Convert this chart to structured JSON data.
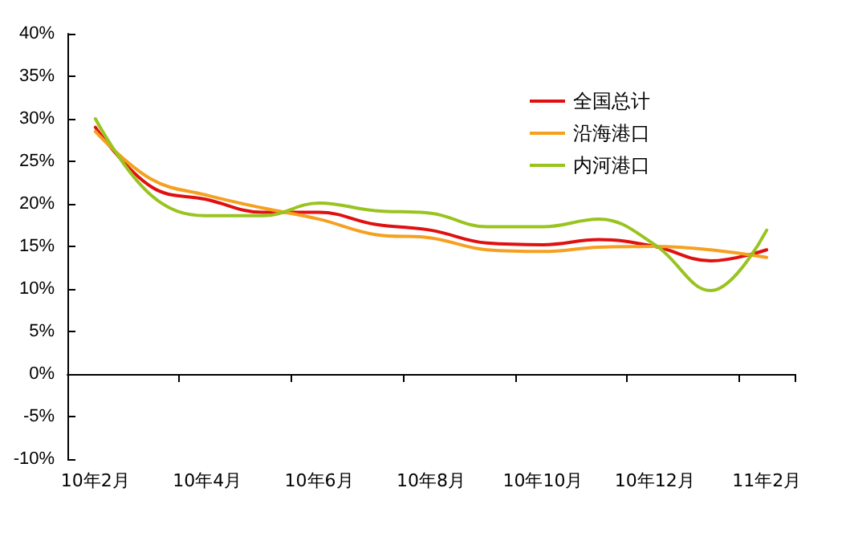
{
  "chart_data": {
    "type": "line",
    "categories": [
      "10年2月",
      null,
      "10年4月",
      null,
      "10年6月",
      null,
      "10年8月",
      null,
      "10年10月",
      null,
      "10年12月",
      null,
      "11年2月"
    ],
    "series": [
      {
        "name": "全国总计",
        "color": "#e01010",
        "values": [
          29,
          22,
          20.5,
          19,
          19,
          17.6,
          16.9,
          15.4,
          15.2,
          15.8,
          15,
          13.3,
          14.6
        ]
      },
      {
        "name": "沿海港口",
        "color": "#f5a020",
        "values": [
          28.5,
          22.9,
          21,
          19.5,
          18.2,
          16.4,
          16,
          14.6,
          14.4,
          14.9,
          15,
          14.6,
          13.7
        ]
      },
      {
        "name": "内河港口",
        "color": "#99c420",
        "values": [
          30,
          21,
          18.6,
          18.6,
          20.1,
          19.2,
          18.9,
          17.3,
          17.3,
          18.2,
          15.2,
          9.8,
          16.9
        ]
      }
    ],
    "ylim": [
      -10,
      40
    ],
    "yticks": [
      {
        "value": -10,
        "label": "-10%"
      },
      {
        "value": -5,
        "label": "-5%"
      },
      {
        "value": 0,
        "label": "0%"
      },
      {
        "value": 5,
        "label": "5%"
      },
      {
        "value": 10,
        "label": "10%"
      },
      {
        "value": 15,
        "label": "15%"
      },
      {
        "value": 20,
        "label": "20%"
      },
      {
        "value": 25,
        "label": "25%"
      },
      {
        "value": 30,
        "label": "30%"
      },
      {
        "value": 35,
        "label": "35%"
      },
      {
        "value": 40,
        "label": "40%"
      }
    ],
    "legend": "top right",
    "marker": "none",
    "line_style": "solid"
  }
}
